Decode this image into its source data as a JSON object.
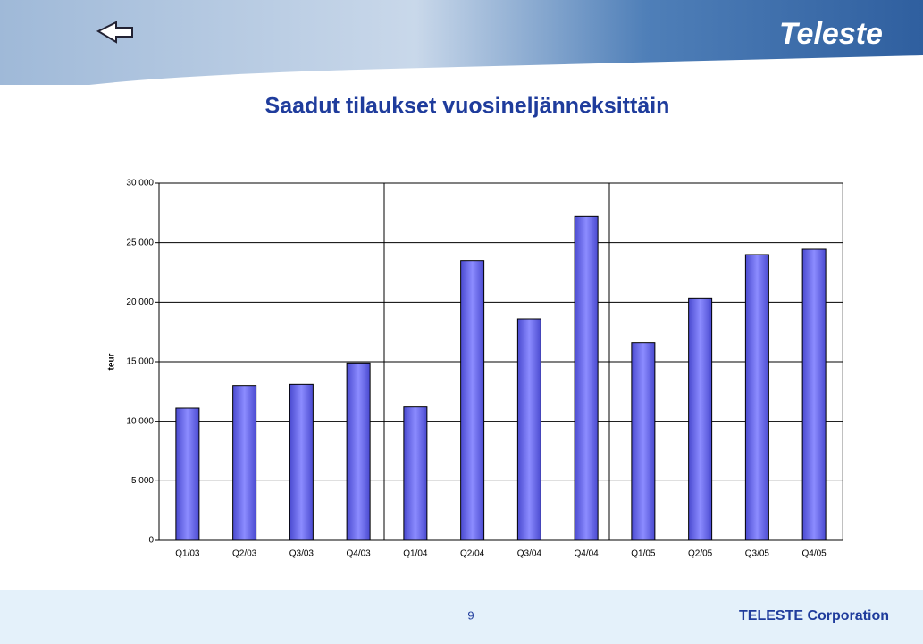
{
  "logo": "Teleste",
  "chart_data": {
    "type": "bar",
    "title": "Saadut tilaukset vuosineljänneksittäin",
    "y_label": "teur",
    "categories": [
      "Q1/03",
      "Q2/03",
      "Q3/03",
      "Q4/03",
      "Q1/04",
      "Q2/04",
      "Q3/04",
      "Q4/04",
      "Q1/05",
      "Q2/05",
      "Q3/05",
      "Q4/05"
    ],
    "values": [
      11100,
      13000,
      13100,
      14900,
      11200,
      23500,
      18600,
      27200,
      16600,
      20300,
      24000,
      24450
    ],
    "color": "#6b6bef",
    "ylim": [
      0,
      30000
    ],
    "yticks": [
      0,
      {
        "value": 5000,
        "label": "5 000"
      },
      {
        "value": 10000,
        "label": "10 000"
      },
      {
        "value": 15000,
        "label": "15 000"
      },
      {
        "value": 20000,
        "label": "20 000"
      },
      {
        "value": 25000,
        "label": "25 000"
      },
      {
        "value": 30000,
        "label": "30 000"
      }
    ],
    "grid": true
  },
  "footer": {
    "page": "9",
    "company": "TELESTE Corporation"
  }
}
